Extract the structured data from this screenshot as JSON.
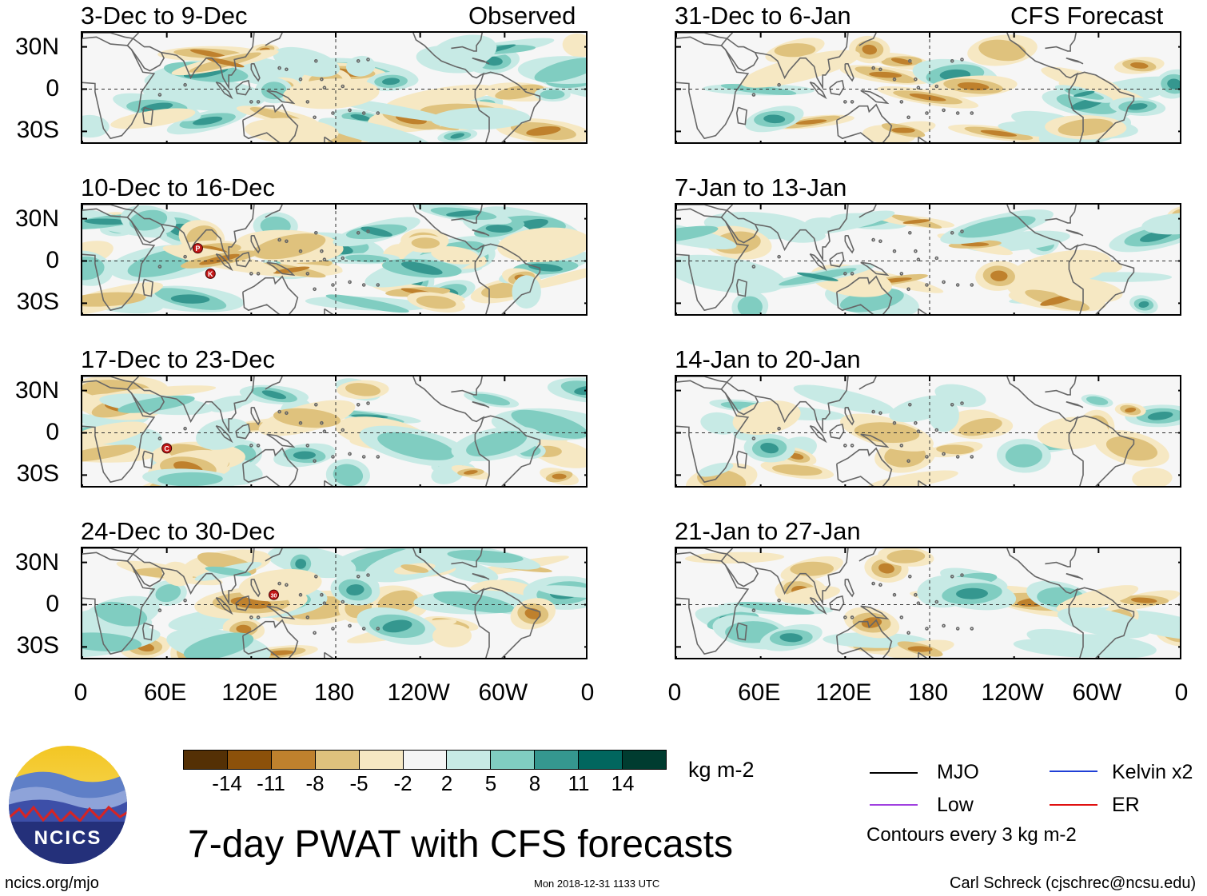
{
  "figure": {
    "title": "7-day PWAT with CFS forecasts",
    "units": "kg m-2",
    "website": "ncics.org/mjo",
    "timestamp": "Mon 2018-12-31 1133 UTC",
    "author": "Carl Schreck (cjschrec@ncsu.edu)",
    "logo_text": "NCICS",
    "contour_note": "Contours every 3 kg m-2"
  },
  "column_headers": {
    "left": "Observed",
    "right": "CFS Forecast"
  },
  "panels": {
    "observed": [
      {
        "period": "3-Dec to 9-Dec",
        "storm_markers": []
      },
      {
        "period": "10-Dec to 16-Dec",
        "storm_markers": [
          {
            "label": "P",
            "lon": 82,
            "lat": 9
          },
          {
            "label": "K",
            "lon": 91,
            "lat": -9
          }
        ]
      },
      {
        "period": "17-Dec to 23-Dec",
        "storm_markers": [
          {
            "label": "C",
            "lon": 60,
            "lat": -11
          }
        ]
      },
      {
        "period": "24-Dec to 30-Dec",
        "storm_markers": [
          {
            "label": "30",
            "lon": 136,
            "lat": 7
          }
        ]
      }
    ],
    "forecast": [
      {
        "period": "31-Dec to 6-Jan"
      },
      {
        "period": "7-Jan to 13-Jan"
      },
      {
        "period": "14-Jan to 20-Jan"
      },
      {
        "period": "21-Jan to 27-Jan"
      }
    ]
  },
  "axes": {
    "lat_ticks": [
      "30N",
      "0",
      "30S"
    ],
    "lon_ticks": [
      "0",
      "60E",
      "120E",
      "180",
      "120W",
      "60W",
      "0"
    ],
    "lat_range": [
      -40,
      40
    ],
    "lon_range": [
      0,
      360
    ]
  },
  "colorbar": {
    "tick_labels": [
      "-14",
      "-11",
      "-8",
      "-5",
      "-2",
      "2",
      "5",
      "8",
      "11",
      "14"
    ],
    "colors": [
      "#543005",
      "#8c510a",
      "#bf812d",
      "#dfc27d",
      "#f6e8c3",
      "#f5f5f5",
      "#c7eae5",
      "#80cdc1",
      "#35978f",
      "#01665e",
      "#003c30"
    ]
  },
  "legend": [
    {
      "label": "MJO",
      "color": "#000000"
    },
    {
      "label": "Kelvin x2",
      "color": "#1f3fd6"
    },
    {
      "label": "Low",
      "color": "#a040e0"
    },
    {
      "label": "ER",
      "color": "#e01010"
    }
  ]
}
